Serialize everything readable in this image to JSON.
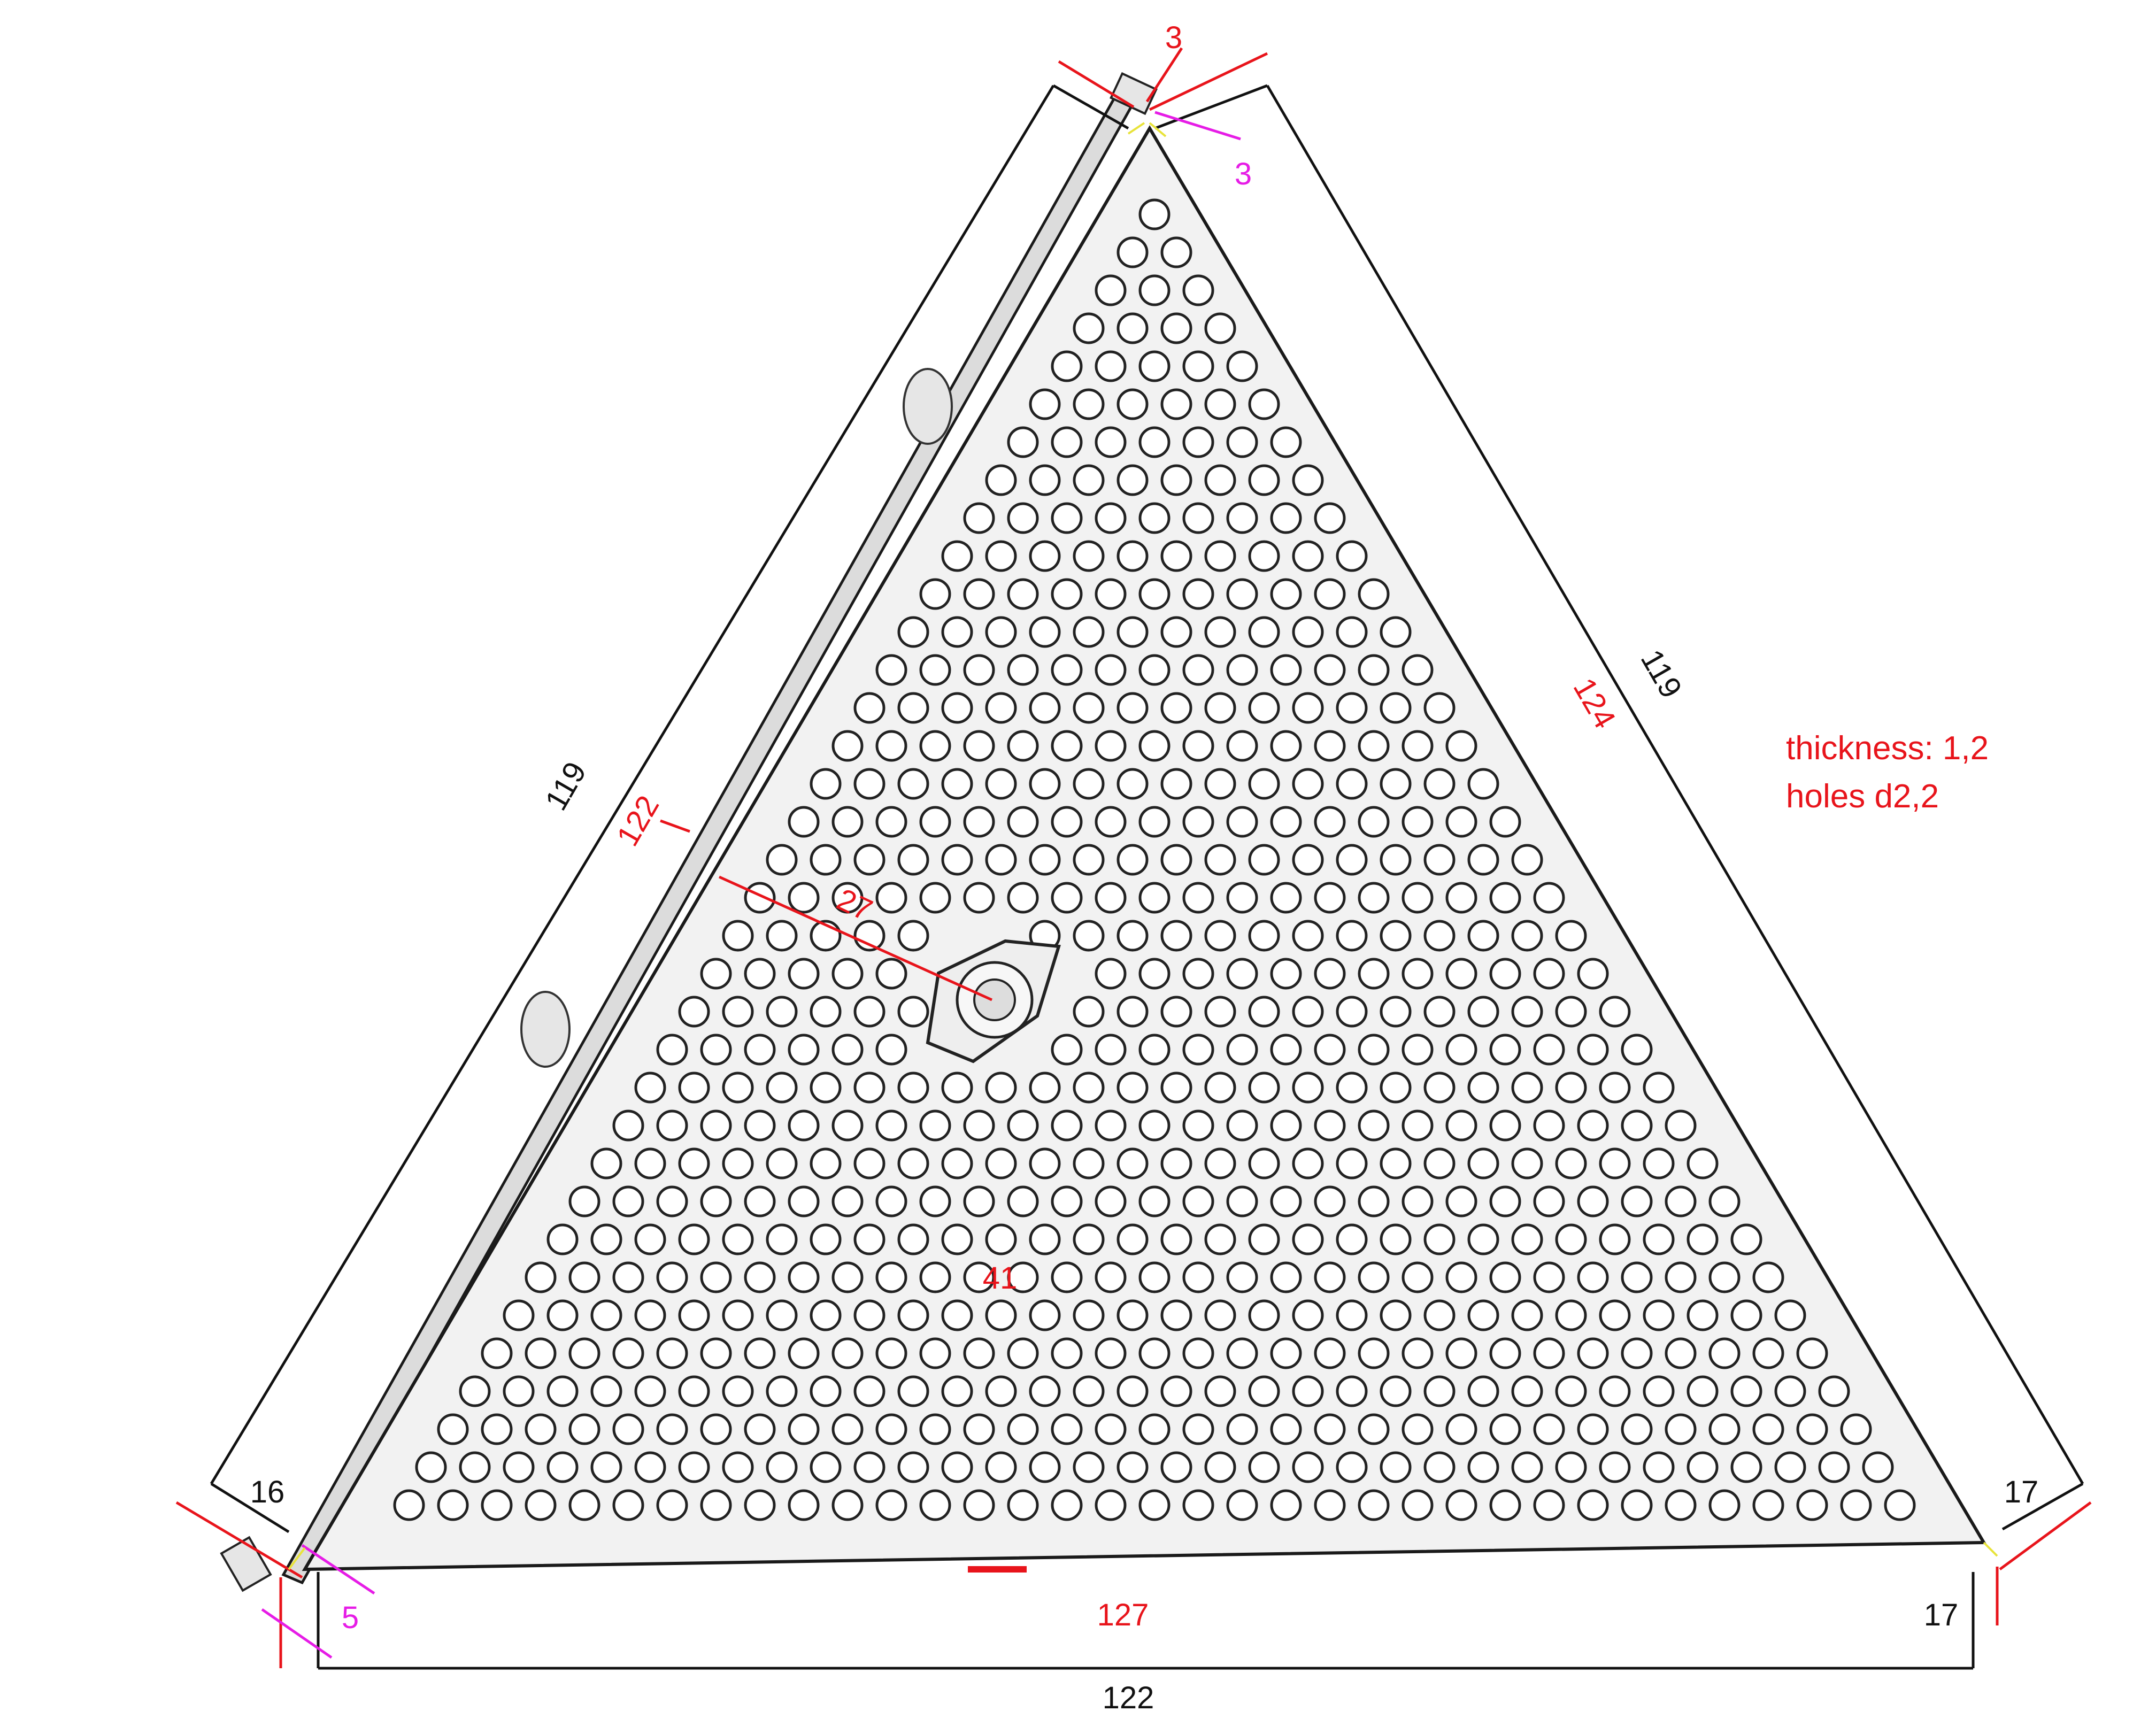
{
  "colors": {
    "primary_dimension": "#e8141b",
    "reference_dimension": "#111111",
    "offset_dimension": "#e61ce6",
    "corner_mark": "#e8e33a",
    "plate_fill": "#f2f2f2",
    "plate_edge": "#1a1a1a",
    "hole_fill": "#ffffff"
  },
  "dimensions": {
    "top_gap": "3",
    "top_offset": "3",
    "left_outer": "119",
    "left_inner": "122",
    "right_outer": "119",
    "right_inner": "124",
    "bottom_inner": "127",
    "bottom_outer": "122",
    "bottom_left_corner": "16",
    "bottom_left_offset": "5",
    "bottom_right_corner_upper": "17",
    "bottom_right_corner_lower": "17",
    "nut_to_edge": "27",
    "nut_to_base": "41"
  },
  "notes": {
    "thickness": "thickness: 1,2",
    "holes": "holes d2,2"
  },
  "icons": {
    "nut": "hex-nut-icon"
  }
}
